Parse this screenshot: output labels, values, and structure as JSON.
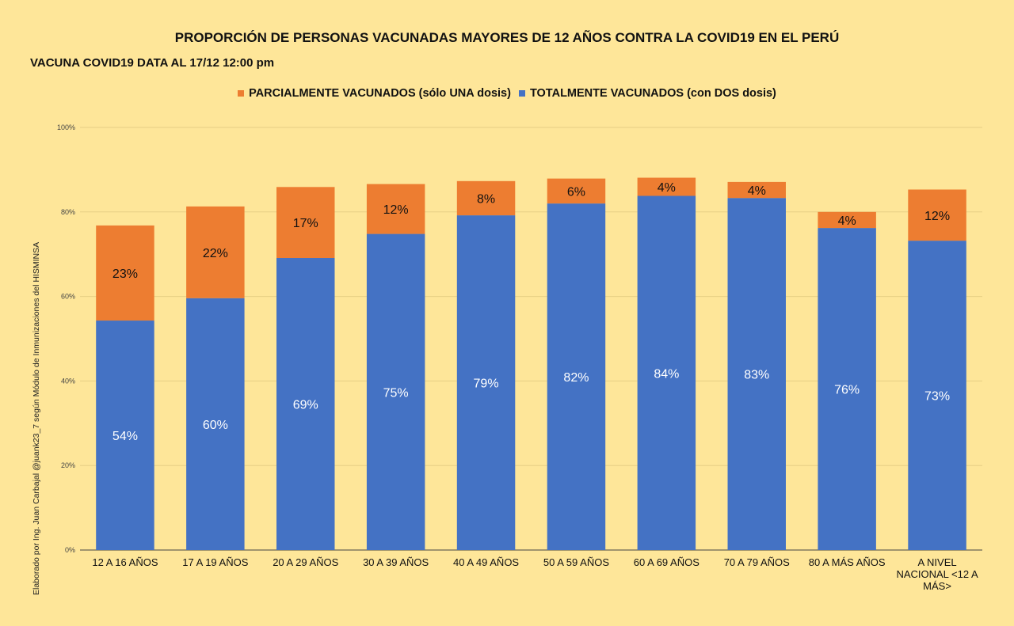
{
  "header": {
    "title": "PROPORCIÓN DE PERSONAS VACUNADAS MAYORES DE 12 AÑOS CONTRA LA COVID19 EN EL PERÚ",
    "subtitle": "VACUNA COVID19 DATA AL 17/12 12:00 pm"
  },
  "side_note": "Elaborado por Ing. Juan Carbajal @juank23_7 según Módulo de Inmunizaciones del HISMINSA",
  "colors": {
    "background": "#fee699",
    "partial": "#ed7d31",
    "total": "#4472c4",
    "grid": "#e6cf85"
  },
  "chart_data": {
    "type": "bar",
    "stacked": true,
    "title": "PROPORCIÓN DE PERSONAS VACUNADAS MAYORES DE 12 AÑOS CONTRA LA COVID19 EN EL PERÚ",
    "subtitle": "VACUNA COVID19 DATA AL 17/12 12:00 pm",
    "legend_position": "top",
    "grid": true,
    "ylim": [
      0,
      100
    ],
    "yticks": [
      "0%",
      "20%",
      "40%",
      "60%",
      "80%",
      "100%"
    ],
    "categories": [
      [
        "12 A 16 AÑOS"
      ],
      [
        "17 A 19 AÑOS"
      ],
      [
        "20 A 29 AÑOS"
      ],
      [
        "30 A 39 AÑOS"
      ],
      [
        "40 A 49 AÑOS"
      ],
      [
        "50 A 59 AÑOS"
      ],
      [
        "60 A 69 AÑOS"
      ],
      [
        "70 A 79 AÑOS"
      ],
      [
        "80 A MÁS AÑOS"
      ],
      [
        "A NIVEL",
        "NACIONAL <12 A",
        "MÁS>"
      ]
    ],
    "series": [
      {
        "name": "TOTALMENTE VACUNADOS (con DOS dosis)",
        "values": [
          54.3,
          59.6,
          69.1,
          74.8,
          79.2,
          82.0,
          83.8,
          83.3,
          76.2,
          73.2
        ],
        "labels": [
          "54%",
          "60%",
          "69%",
          "75%",
          "79%",
          "82%",
          "84%",
          "83%",
          "76%",
          "73%"
        ]
      },
      {
        "name": "PARCIALMENTE VACUNADOS (sólo UNA dosis)",
        "values": [
          22.5,
          21.7,
          16.8,
          11.8,
          8.1,
          5.9,
          4.3,
          3.8,
          3.8,
          12.1
        ],
        "labels": [
          "23%",
          "22%",
          "17%",
          "12%",
          "8%",
          "6%",
          "4%",
          "4%",
          "4%",
          "12%"
        ]
      }
    ]
  }
}
